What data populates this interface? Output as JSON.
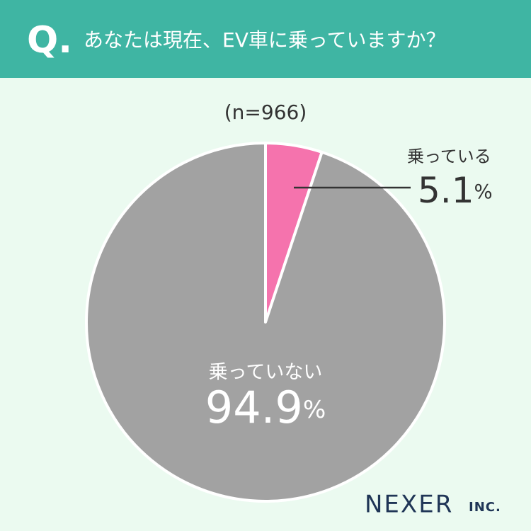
{
  "chart_data": {
    "type": "pie",
    "question_label": "Q.",
    "title": "あなたは現在、EV車に乗っていますか？",
    "sample_note": "(n=966)",
    "categories": [
      "乗っている",
      "乗っていない"
    ],
    "values": [
      5.1,
      94.9
    ],
    "value_labels": [
      "5.1%",
      "94.9%"
    ],
    "colors": [
      "#f573ad",
      "#a2a2a2"
    ],
    "brand": "NEXER",
    "brand_suffix": "INC."
  }
}
